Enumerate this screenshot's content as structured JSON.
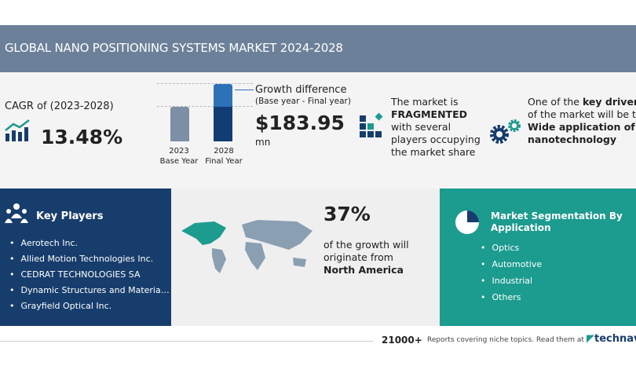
{
  "title": "GLOBAL NANO POSITIONING SYSTEMS MARKET 2024-2028",
  "cagr": {
    "label": "CAGR of (2023-2028)",
    "value": "13.48%"
  },
  "bars": {
    "base_year": "2023",
    "base_label": "Base Year",
    "final_year": "2028",
    "final_label": "Final Year"
  },
  "growth": {
    "label": "Growth difference",
    "sub": "(Base year - Final year)",
    "value": "$183.95",
    "unit": "mn"
  },
  "market": {
    "line1": "The market is",
    "bold": "FRAGMENTED",
    "line3": "with several",
    "line4": "players occupying",
    "line5": "the market share"
  },
  "drivers": {
    "pre": "One of the ",
    "bold1": "key drivers",
    "line2": "of the market will be the",
    "bold2": "Wide application of",
    "bold3": "nanotechnology"
  },
  "key_players": {
    "title": "Key Players",
    "items": [
      "Aerotech Inc.",
      "Allied Motion Technologies Inc.",
      "CEDRAT TECHNOLOGIES SA",
      "Dynamic Structures and Materials LLC",
      "Grayfield Optical Inc."
    ]
  },
  "region": {
    "percent": "37%",
    "line1": "of the growth will",
    "line2": "originate from",
    "region": "North America"
  },
  "segmentation": {
    "title": "Market Segmentation By Application",
    "items": [
      "Optics",
      "Automotive",
      "Industrial",
      "Others"
    ]
  },
  "footer": {
    "count": "21000+",
    "text": "Reports covering niche topics. Read them at",
    "brand": "technavio"
  },
  "colors": {
    "banner": "#6c8199",
    "navy": "#173d6c",
    "teal": "#1c9b8f"
  }
}
